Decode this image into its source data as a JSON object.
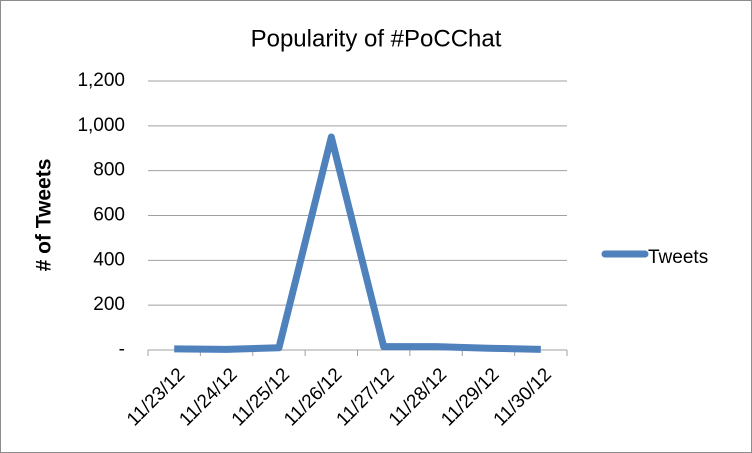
{
  "chart_data": {
    "type": "line",
    "title": "Popularity of #PoCChat",
    "y_label": "# of Tweets",
    "categories": [
      "11/23/12",
      "11/24/12",
      "11/25/12",
      "11/26/12",
      "11/27/12",
      "11/28/12",
      "11/29/12",
      "11/30/12"
    ],
    "series": [
      {
        "name": "Tweets",
        "color": "#4f81bd",
        "values": [
          5,
          3,
          10,
          950,
          15,
          15,
          8,
          3
        ]
      }
    ],
    "ylim": [
      0,
      1200
    ],
    "yticks": [
      {
        "value": 0,
        "label": "-"
      },
      200,
      400,
      600,
      800,
      {
        "value": 1000,
        "label": "1,000"
      },
      {
        "value": 1200,
        "label": "1,200"
      }
    ],
    "grid": true,
    "legend": "right"
  }
}
